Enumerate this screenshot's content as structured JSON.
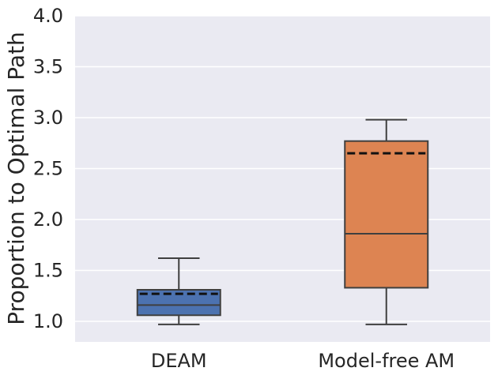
{
  "chart_data": {
    "type": "box",
    "categories": [
      "DEAM",
      "Model-free AM"
    ],
    "ylabel": "Proportion to Optimal Path",
    "xlabel": "",
    "ylim": [
      0.8,
      4.0
    ],
    "yticks": [
      "1.0",
      "1.5",
      "2.0",
      "2.5",
      "3.0",
      "3.5",
      "4.0"
    ],
    "grid": true,
    "background": "#EAEAF2",
    "boxes": [
      {
        "category": "DEAM",
        "whisker_low": 0.97,
        "q1": 1.06,
        "median": 1.16,
        "q3": 1.31,
        "whisker_high": 1.62,
        "mean": 1.27,
        "color": "#4C72B0"
      },
      {
        "category": "Model-free AM",
        "whisker_low": 0.97,
        "q1": 1.33,
        "median": 1.86,
        "q3": 2.77,
        "whisker_high": 2.98,
        "mean": 2.65,
        "color": "#DD8452"
      }
    ]
  }
}
